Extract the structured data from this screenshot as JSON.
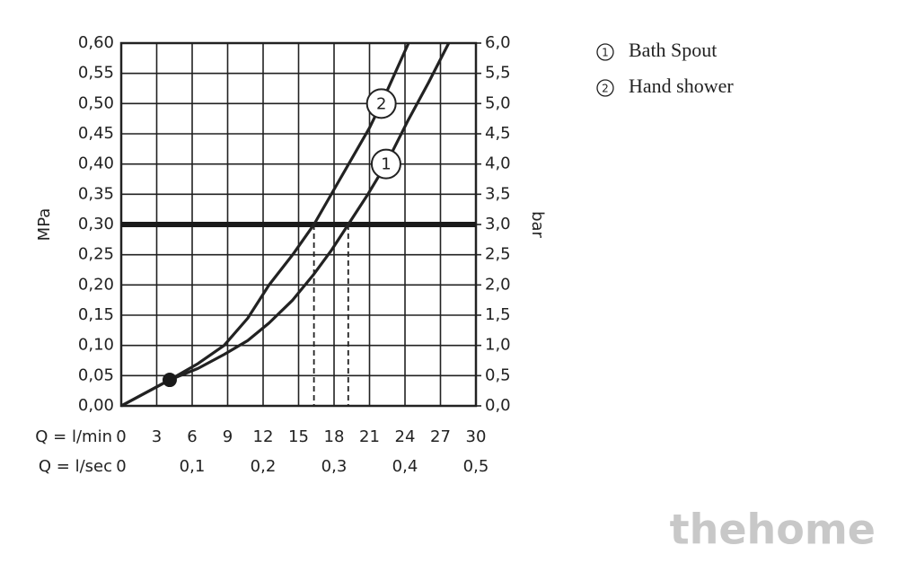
{
  "chart_data": {
    "type": "line",
    "y_label": "MPa",
    "y2_label": "bar",
    "x_label": "Q = l/min",
    "x2_label": "Q = l/sec",
    "xlim": [
      0,
      30
    ],
    "xticks": [
      0,
      3,
      6,
      9,
      12,
      15,
      18,
      21,
      24,
      27,
      30
    ],
    "x2lim": [
      0,
      0.5
    ],
    "x2ticks": [
      0,
      {
        "value": 0.1,
        "label": "0,1"
      },
      {
        "value": 0.2,
        "label": "0,2"
      },
      {
        "value": 0.3,
        "label": "0,3"
      },
      {
        "value": 0.4,
        "label": "0,4"
      },
      {
        "value": 0.5,
        "label": "0,5"
      }
    ],
    "ylim": [
      0,
      0.6
    ],
    "yticks": [
      {
        "value": 0,
        "label": "0,00"
      },
      {
        "value": 0.05,
        "label": "0,05"
      },
      {
        "value": 0.1,
        "label": "0,10"
      },
      {
        "value": 0.15,
        "label": "0,15"
      },
      {
        "value": 0.2,
        "label": "0,20"
      },
      {
        "value": 0.25,
        "label": "0,25"
      },
      {
        "value": 0.3,
        "label": "0,30"
      },
      {
        "value": 0.35,
        "label": "0,35"
      },
      {
        "value": 0.4,
        "label": "0,40"
      },
      {
        "value": 0.45,
        "label": "0,45"
      },
      {
        "value": 0.5,
        "label": "0,50"
      },
      {
        "value": 0.55,
        "label": "0,55"
      },
      {
        "value": 0.6,
        "label": "0,60"
      }
    ],
    "y2lim": [
      0,
      6
    ],
    "y2ticks": [
      {
        "value": 0,
        "label": "0,0"
      },
      {
        "value": 0.5,
        "label": "0,5"
      },
      {
        "value": 1,
        "label": "1,0"
      },
      {
        "value": 1.5,
        "label": "1,5"
      },
      {
        "value": 2,
        "label": "2,0"
      },
      {
        "value": 2.5,
        "label": "2,5"
      },
      {
        "value": 3,
        "label": "3,0"
      },
      {
        "value": 3.5,
        "label": "3,5"
      },
      {
        "value": 4,
        "label": "4,0"
      },
      {
        "value": 4.5,
        "label": "4,5"
      },
      {
        "value": 5,
        "label": "5,0"
      },
      {
        "value": 5.5,
        "label": "5,5"
      },
      {
        "value": 6,
        "label": "6,0"
      }
    ],
    "grid": true,
    "color": "#222222",
    "reference_y": 0.3,
    "series": [
      {
        "name": "Bath Spout",
        "label": "1",
        "x": [
          0,
          4.1,
          6.5,
          8.7,
          10.7,
          12.5,
          14.5,
          16.3,
          17.8,
          19.2,
          20.8,
          22.4,
          24.2,
          26.0,
          27.7
        ],
        "values": [
          0,
          0.043,
          0.062,
          0.085,
          0.108,
          0.137,
          0.175,
          0.218,
          0.258,
          0.3,
          0.348,
          0.4,
          0.47,
          0.535,
          0.6
        ]
      },
      {
        "name": "Hand shower",
        "label": "2",
        "x": [
          0,
          4.1,
          6.5,
          8.7,
          10.7,
          12.5,
          14.5,
          16.3,
          18.5,
          21.0,
          22.0,
          24.3
        ],
        "values": [
          0,
          0.043,
          0.07,
          0.1,
          0.145,
          0.2,
          0.25,
          0.3,
          0.375,
          0.46,
          0.5,
          0.6
        ]
      }
    ],
    "watermark": "thehome"
  }
}
